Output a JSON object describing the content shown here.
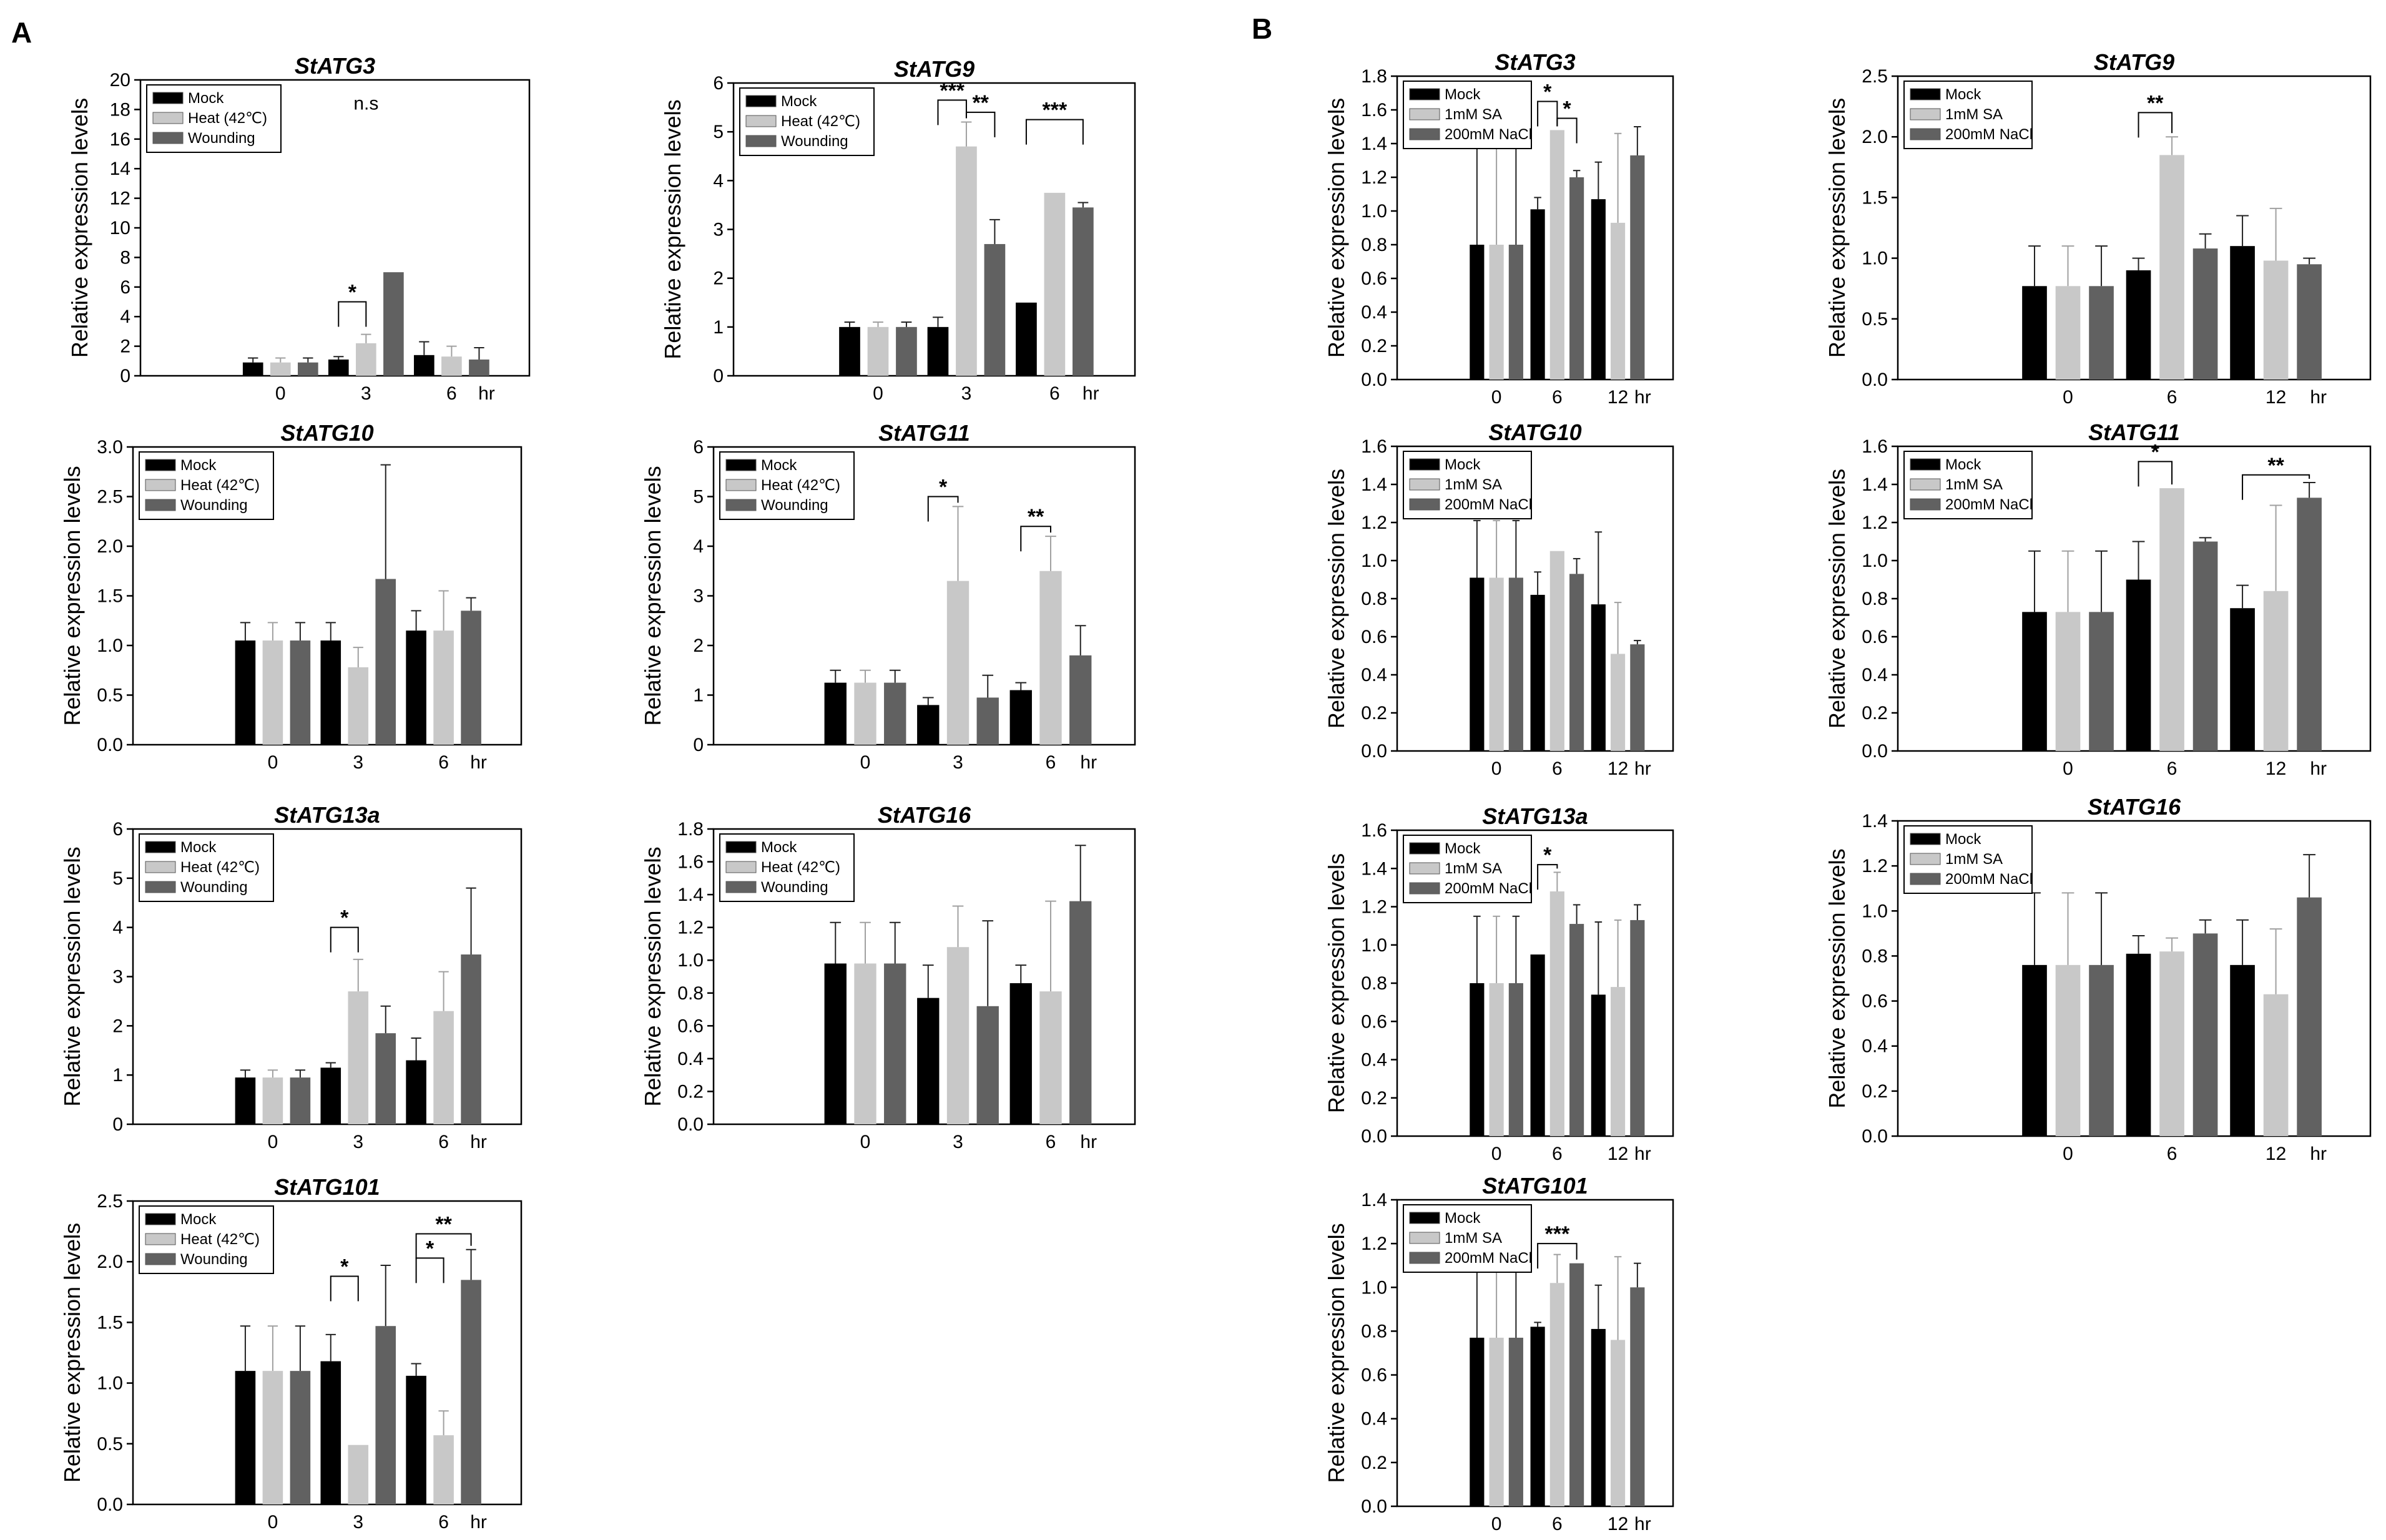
{
  "figure": {
    "panel_labels": [
      "A",
      "B"
    ],
    "colors": {
      "mock": "#000000",
      "treat1": "#c8c8c8",
      "treat2": "#616161",
      "axis": "#000000"
    }
  },
  "chart_data": [
    {
      "id": "A1",
      "type": "bar",
      "title": "StATG3",
      "ylabel": "Relative expression levels",
      "categories": [
        "0",
        "3",
        "6"
      ],
      "unit": "hr",
      "ylim": [
        0,
        20
      ],
      "yticks": [
        "0",
        "2",
        "4",
        "6",
        "8",
        "10",
        "12",
        "14",
        "16",
        "18",
        "20"
      ],
      "series": [
        {
          "name": "Mock",
          "values": [
            0.9,
            1.1,
            1.4
          ],
          "errors": [
            0.3,
            0.2,
            0.9
          ]
        },
        {
          "name": "Heat (42℃)",
          "values": [
            0.9,
            2.2,
            1.3
          ],
          "errors": [
            0.3,
            0.6,
            0.7
          ]
        },
        {
          "name": "Wounding",
          "values": [
            0.9,
            7.0,
            1.1
          ],
          "errors": [
            0.3,
            0.0,
            0.8
          ]
        }
      ],
      "annotations": [
        {
          "text": "*",
          "cat": 1,
          "a": 0,
          "b": 1,
          "level": 5.0
        },
        {
          "text": "n.s",
          "free": true,
          "cat": 1,
          "level": 18.0
        }
      ]
    },
    {
      "id": "A2",
      "type": "bar",
      "title": "StATG9",
      "ylabel": "Relative expression levels",
      "categories": [
        "0",
        "3",
        "6"
      ],
      "unit": "hr",
      "ylim": [
        0,
        6
      ],
      "yticks": [
        "0",
        "1",
        "2",
        "3",
        "4",
        "5",
        "6"
      ],
      "series": [
        {
          "name": "Mock",
          "values": [
            1.0,
            1.0,
            1.5
          ],
          "errors": [
            0.1,
            0.2,
            0.0
          ]
        },
        {
          "name": "Heat (42℃)",
          "values": [
            1.0,
            4.7,
            3.75
          ],
          "errors": [
            0.1,
            0.5,
            0.0
          ]
        },
        {
          "name": "Wounding",
          "values": [
            1.0,
            2.7,
            3.45
          ],
          "errors": [
            0.1,
            0.5,
            0.1
          ]
        }
      ],
      "annotations": [
        {
          "text": "***",
          "cat": 1,
          "a": 0,
          "b": 1,
          "level": 5.65
        },
        {
          "text": "**",
          "cat": 1,
          "a": 1,
          "b": 2,
          "level": 5.4
        },
        {
          "text": "***",
          "cat": 2,
          "a": 0,
          "b": 2,
          "level": 5.25
        }
      ]
    },
    {
      "id": "A3",
      "type": "bar",
      "title": "StATG10",
      "ylabel": "Relative expression levels",
      "categories": [
        "0",
        "3",
        "6"
      ],
      "unit": "hr",
      "ylim": [
        0,
        3.0
      ],
      "yticks": [
        "0.0",
        "0.5",
        "1.0",
        "1.5",
        "2.0",
        "2.5",
        "3.0"
      ],
      "series": [
        {
          "name": "Mock",
          "values": [
            1.05,
            1.05,
            1.15
          ],
          "errors": [
            0.18,
            0.18,
            0.2
          ]
        },
        {
          "name": "Heat (42℃)",
          "values": [
            1.05,
            0.78,
            1.15
          ],
          "errors": [
            0.18,
            0.2,
            0.4
          ]
        },
        {
          "name": "Wounding",
          "values": [
            1.05,
            1.67,
            1.35
          ],
          "errors": [
            0.18,
            1.15,
            0.13
          ]
        }
      ],
      "annotations": []
    },
    {
      "id": "A4",
      "type": "bar",
      "title": "StATG11",
      "ylabel": "Relative expression levels",
      "categories": [
        "0",
        "3",
        "6"
      ],
      "unit": "hr",
      "ylim": [
        0,
        6
      ],
      "yticks": [
        "0",
        "1",
        "2",
        "3",
        "4",
        "5",
        "6"
      ],
      "series": [
        {
          "name": "Mock",
          "values": [
            1.25,
            0.8,
            1.1
          ],
          "errors": [
            0.25,
            0.15,
            0.15
          ]
        },
        {
          "name": "Heat (42℃)",
          "values": [
            1.25,
            3.3,
            3.5
          ],
          "errors": [
            0.25,
            1.5,
            0.7
          ]
        },
        {
          "name": "Wounding",
          "values": [
            1.25,
            0.95,
            1.8
          ],
          "errors": [
            0.25,
            0.45,
            0.6
          ]
        }
      ],
      "annotations": [
        {
          "text": "*",
          "cat": 1,
          "a": 0,
          "b": 1,
          "level": 5.0
        },
        {
          "text": "**",
          "cat": 2,
          "a": 0,
          "b": 1,
          "level": 4.4
        }
      ]
    },
    {
      "id": "A5",
      "type": "bar",
      "title": "StATG13a",
      "ylabel": "Relative expression levels",
      "categories": [
        "0",
        "3",
        "6"
      ],
      "unit": "hr",
      "ylim": [
        0,
        6
      ],
      "yticks": [
        "0",
        "1",
        "2",
        "3",
        "4",
        "5",
        "6"
      ],
      "series": [
        {
          "name": "Mock",
          "values": [
            0.95,
            1.15,
            1.3
          ],
          "errors": [
            0.15,
            0.1,
            0.45
          ]
        },
        {
          "name": "Heat (42℃)",
          "values": [
            0.95,
            2.7,
            2.3
          ],
          "errors": [
            0.15,
            0.65,
            0.8
          ]
        },
        {
          "name": "Wounding",
          "values": [
            0.95,
            1.85,
            3.45
          ],
          "errors": [
            0.15,
            0.55,
            1.35
          ]
        }
      ],
      "annotations": [
        {
          "text": "*",
          "cat": 1,
          "a": 0,
          "b": 1,
          "level": 4.0
        }
      ]
    },
    {
      "id": "A6",
      "type": "bar",
      "title": "StATG16",
      "ylabel": "Relative expression levels",
      "categories": [
        "0",
        "3",
        "6"
      ],
      "unit": "hr",
      "ylim": [
        0,
        1.8
      ],
      "yticks": [
        "0.0",
        "0.2",
        "0.4",
        "0.6",
        "0.8",
        "1.0",
        "1.2",
        "1.4",
        "1.6",
        "1.8"
      ],
      "series": [
        {
          "name": "Mock",
          "values": [
            0.98,
            0.77,
            0.86
          ],
          "errors": [
            0.25,
            0.2,
            0.11
          ]
        },
        {
          "name": "Heat (42℃)",
          "values": [
            0.98,
            1.08,
            0.81
          ],
          "errors": [
            0.25,
            0.25,
            0.55
          ]
        },
        {
          "name": "Wounding",
          "values": [
            0.98,
            0.72,
            1.36
          ],
          "errors": [
            0.25,
            0.52,
            0.34
          ]
        }
      ],
      "annotations": []
    },
    {
      "id": "A7",
      "type": "bar",
      "title": "StATG101",
      "ylabel": "Relative expression levels",
      "categories": [
        "0",
        "3",
        "6"
      ],
      "unit": "hr",
      "ylim": [
        0,
        2.5
      ],
      "yticks": [
        "0.0",
        "0.5",
        "1.0",
        "1.5",
        "2.0",
        "2.5"
      ],
      "series": [
        {
          "name": "Mock",
          "values": [
            1.1,
            1.18,
            1.06
          ],
          "errors": [
            0.37,
            0.22,
            0.1
          ]
        },
        {
          "name": "Heat (42℃)",
          "values": [
            1.1,
            0.49,
            0.57
          ],
          "errors": [
            0.37,
            0.0,
            0.2
          ]
        },
        {
          "name": "Wounding",
          "values": [
            1.1,
            1.47,
            1.85
          ],
          "errors": [
            0.37,
            0.5,
            0.25
          ]
        }
      ],
      "annotations": [
        {
          "text": "*",
          "cat": 1,
          "a": 0,
          "b": 1,
          "level": 1.88
        },
        {
          "text": "*",
          "cat": 2,
          "a": 0,
          "b": 1,
          "level": 2.03
        },
        {
          "text": "**",
          "cat": 2,
          "a": 0,
          "b": 2,
          "level": 2.23
        }
      ]
    },
    {
      "id": "B1",
      "type": "bar",
      "title": "StATG3",
      "ylabel": "Relative expression levels",
      "categories": [
        "0",
        "6",
        "12"
      ],
      "unit": "hr",
      "ylim": [
        0,
        1.8
      ],
      "yticks": [
        "0.0",
        "0.2",
        "0.4",
        "0.6",
        "0.8",
        "1.0",
        "1.2",
        "1.4",
        "1.6",
        "1.8"
      ],
      "series": [
        {
          "name": "Mock",
          "values": [
            0.8,
            1.01,
            1.07
          ],
          "errors": [
            0.8,
            0.07,
            0.22
          ]
        },
        {
          "name": "1mM SA",
          "values": [
            0.8,
            1.48,
            0.93
          ],
          "errors": [
            0.8,
            0.0,
            0.53
          ]
        },
        {
          "name": "200mM NaCl",
          "values": [
            0.8,
            1.2,
            1.33
          ],
          "errors": [
            0.8,
            0.04,
            0.17
          ]
        }
      ],
      "annotations": [
        {
          "text": "*",
          "cat": 1,
          "a": 0,
          "b": 1,
          "level": 1.65
        },
        {
          "text": "*",
          "cat": 1,
          "a": 1,
          "b": 2,
          "level": 1.55
        }
      ]
    },
    {
      "id": "B2",
      "type": "bar",
      "title": "StATG9",
      "ylabel": "Relative expression levels",
      "categories": [
        "0",
        "6",
        "12"
      ],
      "unit": "hr",
      "ylim": [
        0,
        2.5
      ],
      "yticks": [
        "0.0",
        "0.5",
        "1.0",
        "1.5",
        "2.0",
        "2.5"
      ],
      "series": [
        {
          "name": "Mock",
          "values": [
            0.77,
            0.9,
            1.1
          ],
          "errors": [
            0.33,
            0.1,
            0.25
          ]
        },
        {
          "name": "1mM SA",
          "values": [
            0.77,
            1.85,
            0.98
          ],
          "errors": [
            0.33,
            0.15,
            0.43
          ]
        },
        {
          "name": "200mM NaCl",
          "values": [
            0.77,
            1.08,
            0.95
          ],
          "errors": [
            0.33,
            0.12,
            0.05
          ]
        }
      ],
      "annotations": [
        {
          "text": "**",
          "cat": 1,
          "a": 0,
          "b": 1,
          "level": 2.2
        }
      ]
    },
    {
      "id": "B3",
      "type": "bar",
      "title": "StATG10",
      "ylabel": "Relative expression levels",
      "categories": [
        "0",
        "6",
        "12"
      ],
      "unit": "hr",
      "ylim": [
        0,
        1.6
      ],
      "yticks": [
        "0.0",
        "0.2",
        "0.4",
        "0.6",
        "0.8",
        "1.0",
        "1.2",
        "1.4",
        "1.6"
      ],
      "series": [
        {
          "name": "Mock",
          "values": [
            0.91,
            0.82,
            0.77
          ],
          "errors": [
            0.3,
            0.12,
            0.38
          ]
        },
        {
          "name": "1mM SA",
          "values": [
            0.91,
            1.05,
            0.51
          ],
          "errors": [
            0.3,
            0.0,
            0.27
          ]
        },
        {
          "name": "200mM NaCl",
          "values": [
            0.91,
            0.93,
            0.56
          ],
          "errors": [
            0.3,
            0.08,
            0.02
          ]
        }
      ],
      "annotations": []
    },
    {
      "id": "B4",
      "type": "bar",
      "title": "StATG11",
      "ylabel": "Relative expression levels",
      "categories": [
        "0",
        "6",
        "12"
      ],
      "unit": "hr",
      "ylim": [
        0,
        1.6
      ],
      "yticks": [
        "0.0",
        "0.2",
        "0.4",
        "0.6",
        "0.8",
        "1.0",
        "1.2",
        "1.4",
        "1.6"
      ],
      "series": [
        {
          "name": "Mock",
          "values": [
            0.73,
            0.9,
            0.75
          ],
          "errors": [
            0.32,
            0.2,
            0.12
          ]
        },
        {
          "name": "1mM SA",
          "values": [
            0.73,
            1.38,
            0.84
          ],
          "errors": [
            0.32,
            0.0,
            0.45
          ]
        },
        {
          "name": "200mM NaCl",
          "values": [
            0.73,
            1.1,
            1.33
          ],
          "errors": [
            0.32,
            0.02,
            0.08
          ]
        }
      ],
      "annotations": [
        {
          "text": "*",
          "cat": 1,
          "a": 0,
          "b": 1,
          "level": 1.52
        },
        {
          "text": "**",
          "cat": 2,
          "a": 0,
          "b": 2,
          "level": 1.45
        }
      ]
    },
    {
      "id": "B5",
      "type": "bar",
      "title": "StATG13a",
      "ylabel": "Relative expression levels",
      "categories": [
        "0",
        "6",
        "12"
      ],
      "unit": "hr",
      "ylim": [
        0,
        1.6
      ],
      "yticks": [
        "0.0",
        "0.2",
        "0.4",
        "0.6",
        "0.8",
        "1.0",
        "1.2",
        "1.4",
        "1.6"
      ],
      "series": [
        {
          "name": "Mock",
          "values": [
            0.8,
            0.95,
            0.74
          ],
          "errors": [
            0.35,
            0.0,
            0.38
          ]
        },
        {
          "name": "1mM SA",
          "values": [
            0.8,
            1.28,
            0.78
          ],
          "errors": [
            0.35,
            0.1,
            0.35
          ]
        },
        {
          "name": "200mM NaCl",
          "values": [
            0.8,
            1.11,
            1.13
          ],
          "errors": [
            0.35,
            0.1,
            0.08
          ]
        }
      ],
      "annotations": [
        {
          "text": "*",
          "cat": 1,
          "a": 0,
          "b": 1,
          "level": 1.42
        }
      ]
    },
    {
      "id": "B6",
      "type": "bar",
      "title": "StATG16",
      "ylabel": "Relative expression levels",
      "categories": [
        "0",
        "6",
        "12"
      ],
      "unit": "hr",
      "ylim": [
        0,
        1.4
      ],
      "yticks": [
        "0.0",
        "0.2",
        "0.4",
        "0.6",
        "0.8",
        "1.0",
        "1.2",
        "1.4"
      ],
      "series": [
        {
          "name": "Mock",
          "values": [
            0.76,
            0.81,
            0.76
          ],
          "errors": [
            0.32,
            0.08,
            0.2
          ]
        },
        {
          "name": "1mM SA",
          "values": [
            0.76,
            0.82,
            0.63
          ],
          "errors": [
            0.32,
            0.06,
            0.29
          ]
        },
        {
          "name": "200mM NaCl",
          "values": [
            0.76,
            0.9,
            1.06
          ],
          "errors": [
            0.32,
            0.06,
            0.19
          ]
        }
      ],
      "annotations": []
    },
    {
      "id": "B7",
      "type": "bar",
      "title": "StATG101",
      "ylabel": "Relative expression levels",
      "categories": [
        "0",
        "6",
        "12"
      ],
      "unit": "hr",
      "ylim": [
        0,
        1.4
      ],
      "yticks": [
        "0.0",
        "0.2",
        "0.4",
        "0.6",
        "0.8",
        "1.0",
        "1.2",
        "1.4"
      ],
      "series": [
        {
          "name": "Mock",
          "values": [
            0.77,
            0.82,
            0.81
          ],
          "errors": [
            0.3,
            0.02,
            0.2
          ]
        },
        {
          "name": "1mM SA",
          "values": [
            0.77,
            1.02,
            0.76
          ],
          "errors": [
            0.3,
            0.13,
            0.38
          ]
        },
        {
          "name": "200mM NaCl",
          "values": [
            0.77,
            1.11,
            1.0
          ],
          "errors": [
            0.3,
            0.0,
            0.11
          ]
        }
      ],
      "annotations": [
        {
          "text": "***",
          "cat": 1,
          "a": 0,
          "b": 2,
          "level": 1.2
        }
      ]
    }
  ]
}
